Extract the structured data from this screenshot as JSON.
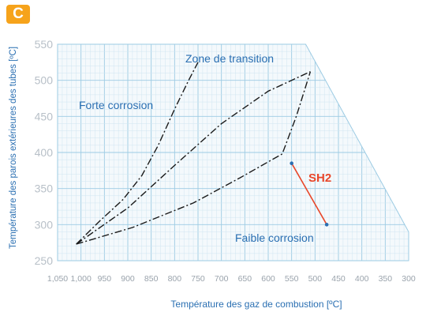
{
  "badge": "C",
  "chart_data": {
    "type": "line",
    "xlabel": "Température des gaz de combustion [ºC]",
    "ylabel": "Température des parois extérieures des tubes [ºC]",
    "x_reversed": true,
    "xlim": [
      1050,
      300
    ],
    "ylim": [
      250,
      550
    ],
    "x_ticks": [
      "1,050",
      "1,000",
      "950",
      "900",
      "850",
      "800",
      "750",
      "700",
      "650",
      "600",
      "550",
      "500",
      "450",
      "400",
      "350",
      "300"
    ],
    "y_ticks": [
      "550",
      "500",
      "450",
      "400",
      "350",
      "300",
      "250"
    ],
    "grid": true,
    "region_labels": {
      "transition": "Zone de transition",
      "high": "Forte corrosion",
      "low": "Faible corrosion"
    },
    "series": [
      {
        "name": "",
        "style": "dashed",
        "color": "#1a1a1a",
        "points": [
          [
            1010,
            273
          ],
          [
            960,
            305
          ],
          [
            910,
            335
          ],
          [
            870,
            368
          ],
          [
            835,
            410
          ],
          [
            800,
            460
          ],
          [
            770,
            500
          ],
          [
            750,
            525
          ]
        ]
      },
      {
        "name": "",
        "style": "dashed",
        "color": "#1a1a1a",
        "points": [
          [
            1010,
            273
          ],
          [
            900,
            323
          ],
          [
            800,
            382
          ],
          [
            700,
            440
          ],
          [
            600,
            485
          ],
          [
            510,
            512
          ]
        ]
      },
      {
        "name": "",
        "style": "dashed",
        "color": "#1a1a1a",
        "points": [
          [
            1010,
            273
          ],
          [
            890,
            296
          ],
          [
            760,
            330
          ],
          [
            660,
            365
          ],
          [
            570,
            398
          ],
          [
            540,
            450
          ],
          [
            510,
            512
          ]
        ]
      },
      {
        "name": "SH2",
        "style": "solid",
        "color": "#e8472a",
        "points": [
          [
            550,
            385
          ],
          [
            475,
            300
          ]
        ]
      }
    ],
    "sh2_label": "SH2"
  }
}
